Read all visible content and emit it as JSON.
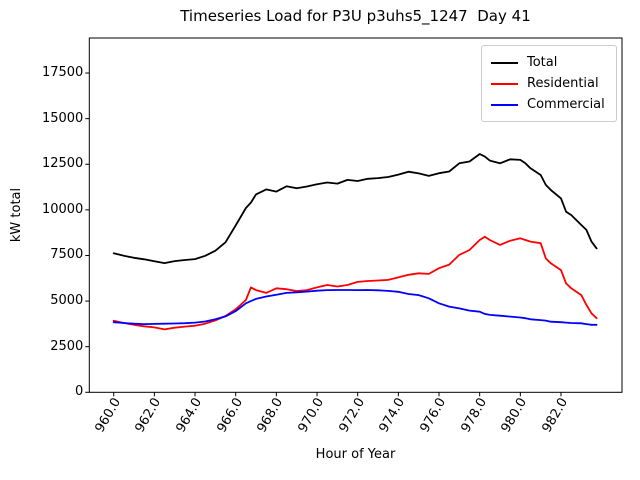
{
  "chart_data": {
    "type": "line",
    "title": "Timeseries Load for P3U p3uhs5_1247  Day 41",
    "xlabel": "Hour of Year",
    "ylabel": "kW total",
    "xlim": [
      958.8,
      985.0
    ],
    "ylim": [
      0,
      19420
    ],
    "xticks": [
      960.0,
      962.0,
      964.0,
      966.0,
      968.0,
      970.0,
      972.0,
      974.0,
      976.0,
      978.0,
      980.0,
      982.0
    ],
    "yticks": [
      0,
      2500,
      5000,
      7500,
      10000,
      12500,
      15000,
      17500
    ],
    "xtick_rotation_deg": 60,
    "grid": false,
    "legend_position": "upper right",
    "axis_color": "#000000",
    "background_color": "#ffffff",
    "x": [
      960.0,
      960.5,
      961.0,
      961.5,
      962.0,
      962.5,
      963.0,
      963.5,
      964.0,
      964.5,
      965.0,
      965.5,
      966.0,
      966.5,
      966.75,
      967.0,
      967.5,
      968.0,
      968.5,
      969.0,
      969.5,
      970.0,
      970.5,
      971.0,
      971.5,
      972.0,
      972.5,
      973.0,
      973.5,
      974.0,
      974.5,
      975.0,
      975.5,
      976.0,
      976.5,
      977.0,
      977.5,
      978.0,
      978.25,
      978.5,
      979.0,
      979.5,
      980.0,
      980.25,
      980.5,
      981.0,
      981.25,
      981.5,
      982.0,
      982.25,
      982.5,
      983.0,
      983.25,
      983.5,
      983.75
    ],
    "series": [
      {
        "name": "Total",
        "color": "#000000",
        "values": [
          7620,
          7480,
          7370,
          7290,
          7180,
          7080,
          7190,
          7250,
          7300,
          7480,
          7760,
          8220,
          9150,
          10100,
          10400,
          10850,
          11120,
          11000,
          11290,
          11180,
          11280,
          11400,
          11500,
          11440,
          11640,
          11580,
          11700,
          11740,
          11800,
          11930,
          12090,
          12000,
          11860,
          12010,
          12100,
          12550,
          12650,
          13060,
          12920,
          12700,
          12550,
          12770,
          12740,
          12550,
          12280,
          11910,
          11370,
          11090,
          10630,
          9900,
          9720,
          9170,
          8900,
          8260,
          7890
        ]
      },
      {
        "name": "Residential",
        "color": "#ff0000",
        "values": [
          3920,
          3800,
          3700,
          3620,
          3560,
          3450,
          3540,
          3600,
          3650,
          3760,
          3940,
          4180,
          4550,
          5060,
          5750,
          5600,
          5450,
          5700,
          5650,
          5550,
          5600,
          5750,
          5880,
          5800,
          5880,
          6050,
          6100,
          6130,
          6160,
          6300,
          6440,
          6520,
          6490,
          6800,
          7000,
          7530,
          7800,
          8350,
          8530,
          8350,
          8080,
          8310,
          8440,
          8350,
          8260,
          8170,
          7340,
          7070,
          6700,
          5970,
          5700,
          5330,
          4790,
          4330,
          4060
        ]
      },
      {
        "name": "Commercial",
        "color": "#0000ff",
        "values": [
          3840,
          3800,
          3760,
          3740,
          3750,
          3760,
          3770,
          3790,
          3820,
          3880,
          4000,
          4160,
          4450,
          4880,
          5000,
          5120,
          5250,
          5350,
          5450,
          5480,
          5520,
          5570,
          5600,
          5610,
          5610,
          5600,
          5610,
          5590,
          5560,
          5510,
          5390,
          5330,
          5150,
          4880,
          4700,
          4600,
          4480,
          4420,
          4300,
          4240,
          4200,
          4150,
          4100,
          4060,
          4000,
          3960,
          3930,
          3870,
          3840,
          3820,
          3800,
          3780,
          3740,
          3700,
          3700
        ]
      }
    ]
  }
}
